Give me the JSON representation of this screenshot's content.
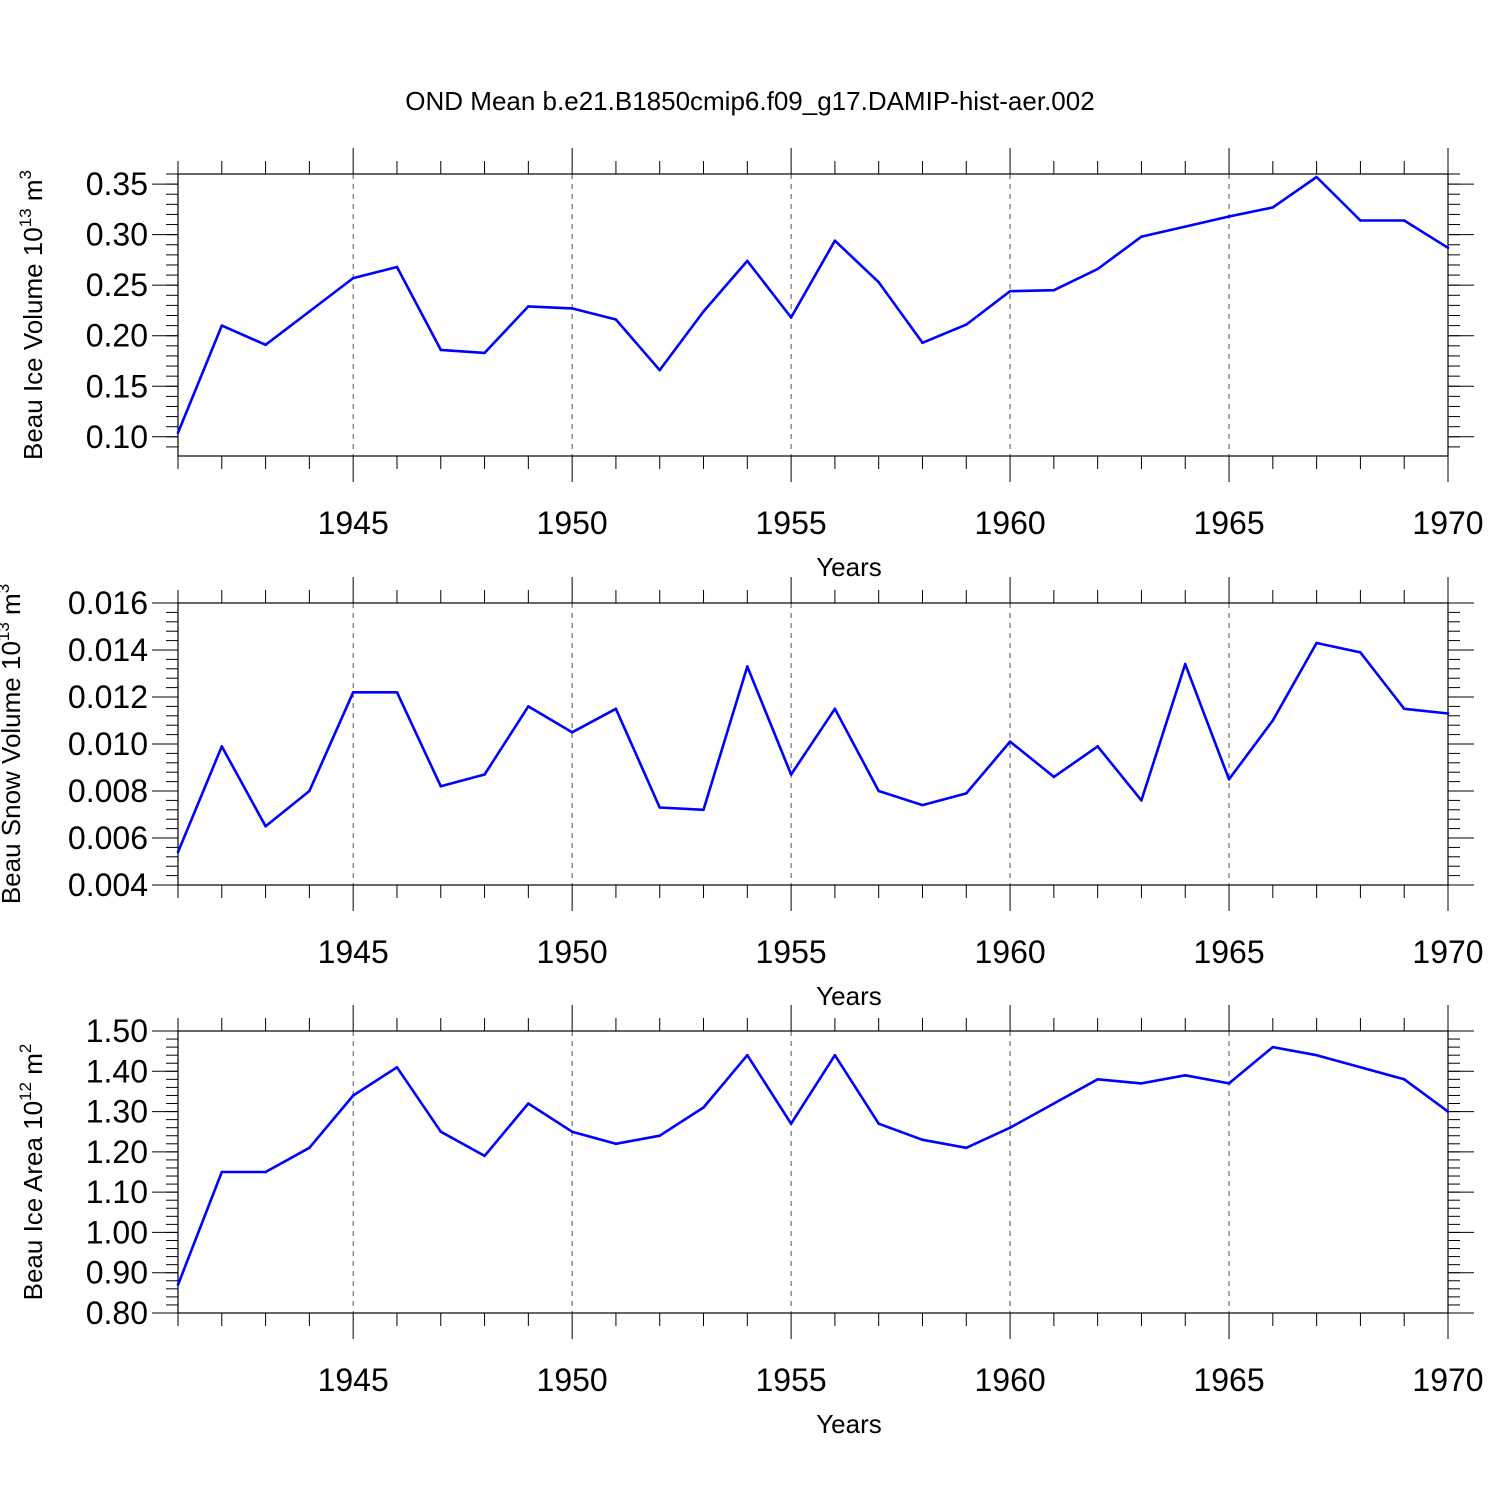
{
  "title": "OND Mean b.e21.B1850cmip6.f09_g17.DAMIP-hist-aer.002",
  "line_color": "#0000ff",
  "chart_data": [
    {
      "type": "line",
      "id": "ice-volume",
      "ylabel_prefix": "Beau Ice Volume 10",
      "ylabel_exp": "13",
      "ylabel_unit": " m",
      "ylabel_unit_exp": "3",
      "xlabel": "Years",
      "xlim": [
        1941,
        1970
      ],
      "ylim": [
        0.081,
        0.36
      ],
      "yticks": [
        0.1,
        0.15,
        0.2,
        0.25,
        0.3,
        0.35
      ],
      "ytick_labels": [
        "0.10",
        "0.15",
        "0.20",
        "0.25",
        "0.30",
        "0.35"
      ],
      "xticks": [
        1945,
        1950,
        1955,
        1960,
        1965,
        1970
      ],
      "xtick_labels": [
        "1945",
        "1950",
        "1955",
        "1960",
        "1965",
        "1970"
      ],
      "x": [
        1941,
        1942,
        1943,
        1944,
        1945,
        1946,
        1947,
        1948,
        1949,
        1950,
        1951,
        1952,
        1953,
        1954,
        1955,
        1956,
        1957,
        1958,
        1959,
        1960,
        1961,
        1962,
        1963,
        1964,
        1965,
        1966,
        1967,
        1968,
        1969,
        1970
      ],
      "values": [
        0.104,
        0.21,
        0.191,
        0.224,
        0.257,
        0.268,
        0.186,
        0.183,
        0.229,
        0.227,
        0.216,
        0.166,
        0.224,
        0.274,
        0.218,
        0.294,
        0.253,
        0.193,
        0.211,
        0.244,
        0.245,
        0.266,
        0.298,
        0.308,
        0.318,
        0.327,
        0.357,
        0.314,
        0.314,
        0.287
      ]
    },
    {
      "type": "line",
      "id": "snow-volume",
      "ylabel_prefix": "Beau Snow Volume 10",
      "ylabel_exp": "13",
      "ylabel_unit": " m",
      "ylabel_unit_exp": "3",
      "xlabel": "Years",
      "xlim": [
        1941,
        1970
      ],
      "ylim": [
        0.004,
        0.016
      ],
      "yticks": [
        0.004,
        0.006,
        0.008,
        0.01,
        0.012,
        0.014,
        0.016
      ],
      "ytick_labels": [
        "0.004",
        "0.006",
        "0.008",
        "0.010",
        "0.012",
        "0.014",
        "0.016"
      ],
      "xticks": [
        1945,
        1950,
        1955,
        1960,
        1965,
        1970
      ],
      "xtick_labels": [
        "1945",
        "1950",
        "1955",
        "1960",
        "1965",
        "1970"
      ],
      "x": [
        1941,
        1942,
        1943,
        1944,
        1945,
        1946,
        1947,
        1948,
        1949,
        1950,
        1951,
        1952,
        1953,
        1954,
        1955,
        1956,
        1957,
        1958,
        1959,
        1960,
        1961,
        1962,
        1963,
        1964,
        1965,
        1966,
        1967,
        1968,
        1969,
        1970
      ],
      "values": [
        0.0054,
        0.0099,
        0.0065,
        0.008,
        0.0122,
        0.0122,
        0.0082,
        0.0087,
        0.0116,
        0.0105,
        0.0115,
        0.0073,
        0.0072,
        0.0133,
        0.0087,
        0.0115,
        0.008,
        0.0074,
        0.0079,
        0.0101,
        0.0086,
        0.0099,
        0.0076,
        0.0134,
        0.0085,
        0.011,
        0.0143,
        0.0139,
        0.0115,
        0.0113
      ]
    },
    {
      "type": "line",
      "id": "ice-area",
      "ylabel_prefix": "Beau Ice Area 10",
      "ylabel_exp": "12",
      "ylabel_unit": " m",
      "ylabel_unit_exp": "2",
      "xlabel": "Years",
      "xlim": [
        1941,
        1970
      ],
      "ylim": [
        0.8,
        1.5
      ],
      "yticks": [
        0.8,
        0.9,
        1.0,
        1.1,
        1.2,
        1.3,
        1.4,
        1.5
      ],
      "ytick_labels": [
        "0.80",
        "0.90",
        "1.00",
        "1.10",
        "1.20",
        "1.30",
        "1.40",
        "1.50"
      ],
      "xticks": [
        1945,
        1950,
        1955,
        1960,
        1965,
        1970
      ],
      "xtick_labels": [
        "1945",
        "1950",
        "1955",
        "1960",
        "1965",
        "1970"
      ],
      "x": [
        1941,
        1942,
        1943,
        1944,
        1945,
        1946,
        1947,
        1948,
        1949,
        1950,
        1951,
        1952,
        1953,
        1954,
        1955,
        1956,
        1957,
        1958,
        1959,
        1960,
        1961,
        1962,
        1963,
        1964,
        1965,
        1966,
        1967,
        1968,
        1969,
        1970
      ],
      "values": [
        0.87,
        1.15,
        1.15,
        1.21,
        1.34,
        1.41,
        1.25,
        1.19,
        1.32,
        1.25,
        1.22,
        1.24,
        1.31,
        1.44,
        1.27,
        1.44,
        1.27,
        1.23,
        1.21,
        1.26,
        1.32,
        1.38,
        1.37,
        1.39,
        1.37,
        1.46,
        1.44,
        1.41,
        1.38,
        1.3
      ]
    }
  ]
}
